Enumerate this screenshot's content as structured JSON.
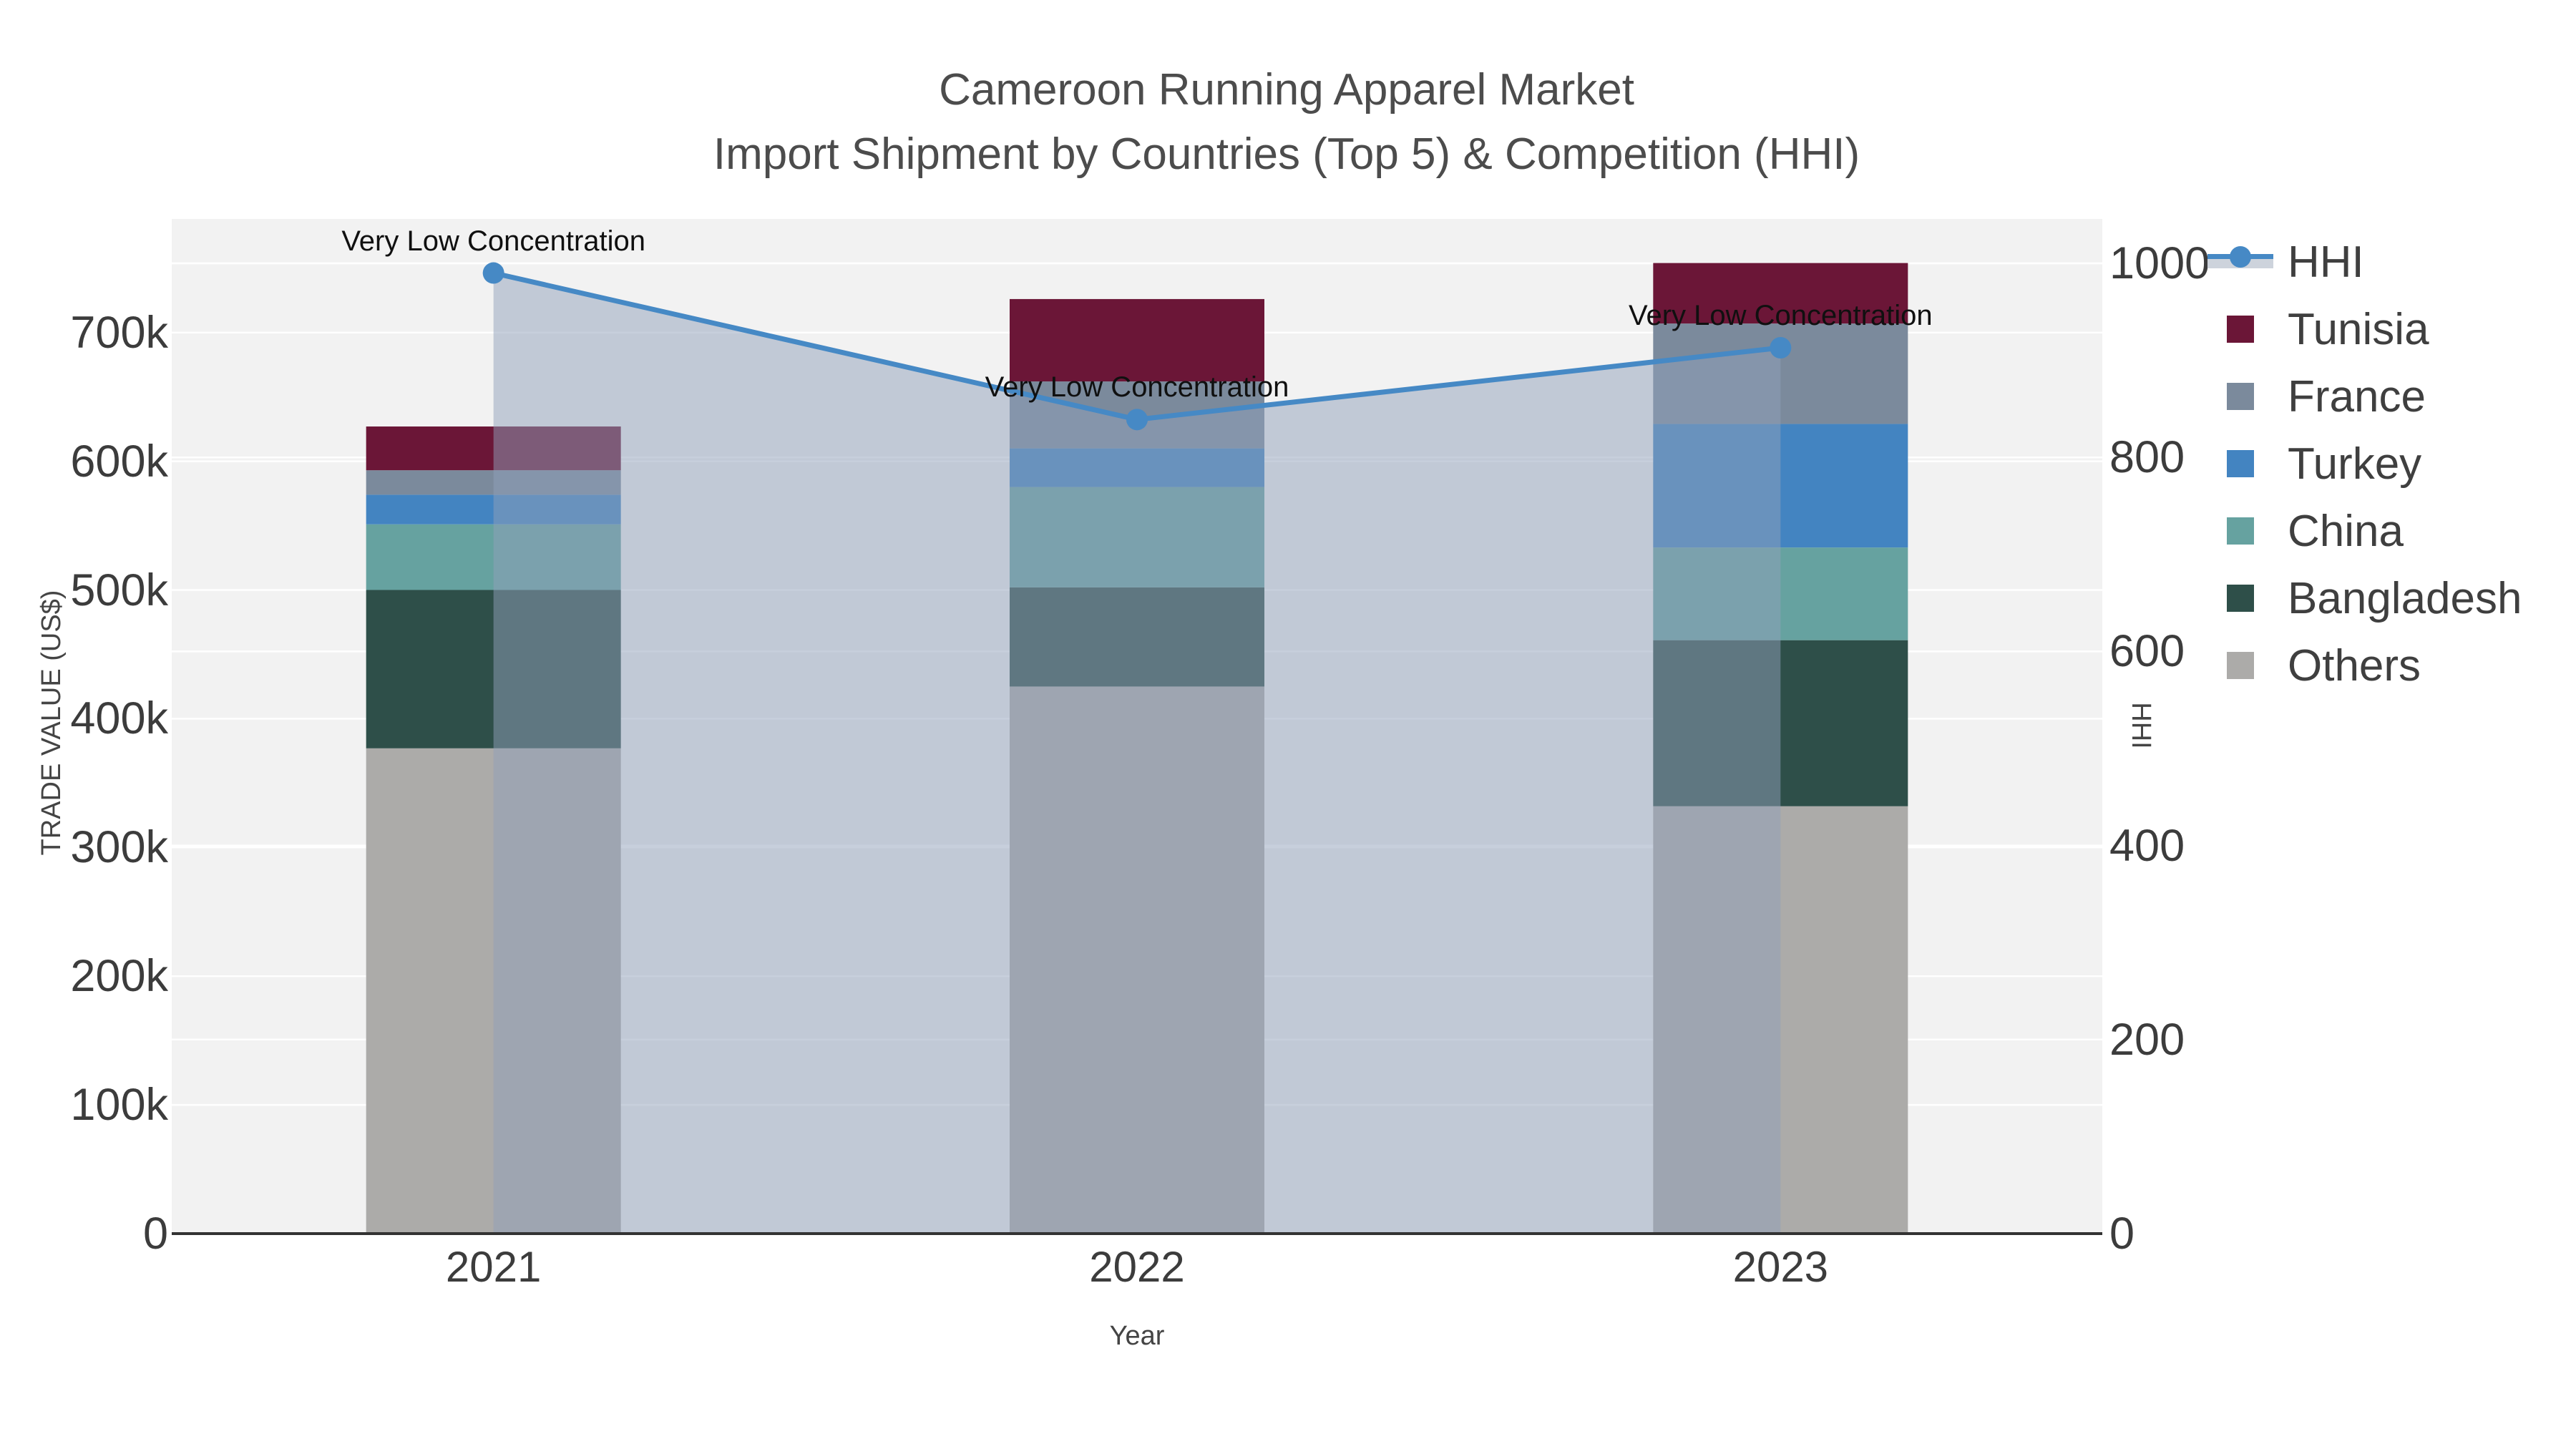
{
  "title": {
    "line1": "Cameroon Running Apparel Market",
    "line2": "Import Shipment by Countries (Top 5) & Competition (HHI)"
  },
  "axes": {
    "left": {
      "title": "TRADE VALUE (US$)",
      "tick_labels": [
        "0",
        "100k",
        "200k",
        "300k",
        "400k",
        "500k",
        "600k",
        "700k"
      ]
    },
    "right": {
      "title": "HHI",
      "tick_labels": [
        "0",
        "200",
        "400",
        "600",
        "800",
        "1000"
      ]
    },
    "x": {
      "title": "Year",
      "tick_labels": [
        "2021",
        "2022",
        "2023"
      ]
    }
  },
  "legend": {
    "items": [
      {
        "label": "HHI",
        "type": "line",
        "color": "#4689c5"
      },
      {
        "label": "Tunisia",
        "type": "swatch",
        "color": "#6b1637"
      },
      {
        "label": "France",
        "type": "swatch",
        "color": "#7b8a9c"
      },
      {
        "label": "Turkey",
        "type": "swatch",
        "color": "#4384c1"
      },
      {
        "label": "China",
        "type": "swatch",
        "color": "#66a2a0"
      },
      {
        "label": "Bangladesh",
        "type": "swatch",
        "color": "#2e4f49"
      },
      {
        "label": "Others",
        "type": "swatch",
        "color": "#acaba9"
      }
    ]
  },
  "annotations": [
    {
      "text": "Very Low Concentration",
      "year": "2021"
    },
    {
      "text": "Very Low Concentration",
      "year": "2022"
    },
    {
      "text": "Very Low Concentration",
      "year": "2023"
    }
  ],
  "chart_data": {
    "type": "bar",
    "subtype": "stacked-bars-with-hhi-line",
    "categories": [
      "2021",
      "2022",
      "2023"
    ],
    "series": [
      {
        "name": "Tunisia",
        "color": "#6b1637",
        "values": [
          34000,
          64000,
          47000
        ]
      },
      {
        "name": "France",
        "color": "#7b8a9c",
        "values": [
          19000,
          52000,
          78000
        ]
      },
      {
        "name": "Turkey",
        "color": "#4384c1",
        "values": [
          23000,
          30000,
          96000
        ]
      },
      {
        "name": "China",
        "color": "#66a2a0",
        "values": [
          51000,
          78000,
          72000
        ]
      },
      {
        "name": "Bangladesh",
        "color": "#2e4f49",
        "values": [
          123000,
          77000,
          129000
        ]
      },
      {
        "name": "Others",
        "color": "#acaba9",
        "values": [
          377000,
          425000,
          332000
        ]
      }
    ],
    "stack_order_bottom_to_top": [
      "Others",
      "Bangladesh",
      "China",
      "Turkey",
      "France",
      "Tunisia"
    ],
    "bar_totals": [
      627000,
      726000,
      754000
    ],
    "line_series": {
      "name": "HHI",
      "color": "#4689c5",
      "fill_color": "rgba(143,160,186,0.5)",
      "axis": "right",
      "values": [
        990,
        839,
        913
      ]
    },
    "title": "Cameroon Running Apparel Market — Import Shipment by Countries (Top 5) & Competition (HHI)",
    "xlabel": "Year",
    "ylabel": "TRADE VALUE (US$)",
    "ylabel_right": "HHI",
    "ylim_left": [
      0,
      788000
    ],
    "ylim_right": [
      0,
      1046
    ],
    "grid": true,
    "legend_position": "right"
  },
  "colors": {
    "plot_background": "#f2f2f2",
    "gridline": "#ffffff",
    "axis_line": "#333333",
    "tick_text": "#3c3c3c",
    "title_text": "#4c4c4c",
    "annotation_text": "#101010"
  }
}
